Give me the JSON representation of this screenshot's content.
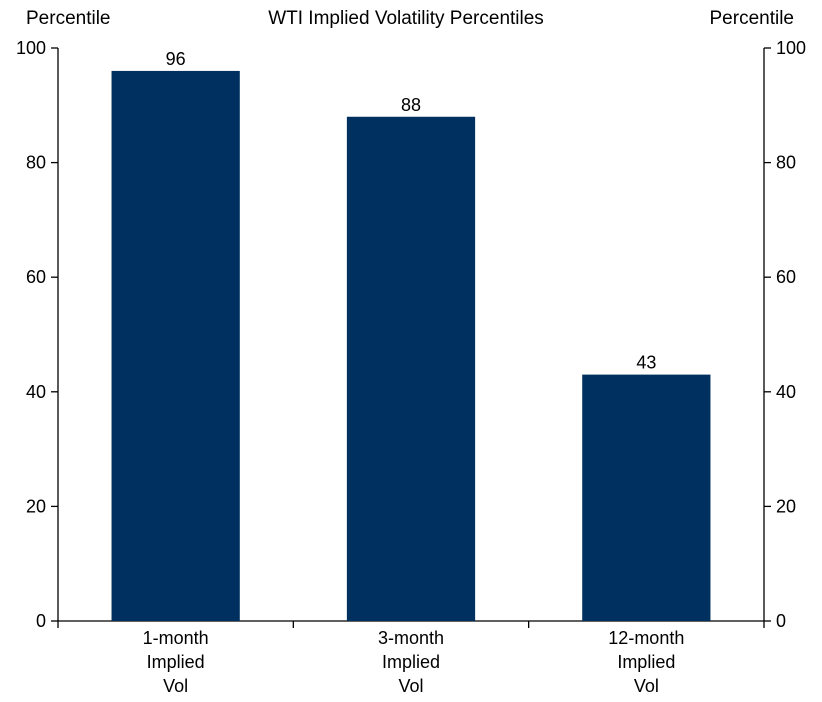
{
  "chart_data": {
    "type": "bar",
    "title": "WTI Implied Volatility Percentiles",
    "ylabel_left": "Percentile",
    "ylabel_right": "Percentile",
    "xlabel": "",
    "categories": [
      [
        "1-month",
        "Implied",
        "Vol"
      ],
      [
        "3-month",
        "Implied",
        "Vol"
      ],
      [
        "12-month",
        "Implied",
        "Vol"
      ]
    ],
    "values": [
      96,
      88,
      43
    ],
    "data_labels": [
      "96",
      "88",
      "43"
    ],
    "ylim": [
      0,
      100
    ],
    "yticks": [
      "0",
      "20",
      "40",
      "60",
      "80",
      "100"
    ],
    "grid": false,
    "legend": "none",
    "bar_color": "#00305f"
  }
}
